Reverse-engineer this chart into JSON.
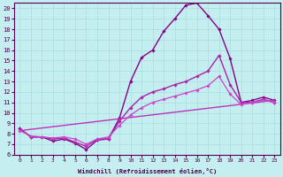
{
  "xlabel": "Windchill (Refroidissement éolien,°C)",
  "xlim": [
    -0.5,
    23.5
  ],
  "ylim": [
    6,
    20.5
  ],
  "xticks": [
    0,
    1,
    2,
    3,
    4,
    5,
    6,
    7,
    8,
    9,
    10,
    11,
    12,
    13,
    14,
    15,
    16,
    17,
    18,
    19,
    20,
    21,
    22,
    23
  ],
  "yticks": [
    6,
    7,
    8,
    9,
    10,
    11,
    12,
    13,
    14,
    15,
    16,
    17,
    18,
    19,
    20
  ],
  "background_color": "#c5eef0",
  "grid_color": "#a8dde0",
  "curves": [
    {
      "x": [
        0,
        1,
        2,
        3,
        4,
        5,
        6,
        7,
        8,
        9,
        10,
        11,
        12,
        13,
        14,
        15,
        16,
        17,
        18,
        19,
        20,
        21,
        22,
        23
      ],
      "y": [
        8.5,
        7.7,
        7.7,
        7.3,
        7.5,
        7.1,
        6.5,
        7.4,
        7.5,
        9.5,
        13.0,
        15.3,
        16.0,
        17.8,
        19.0,
        20.3,
        20.5,
        19.3,
        18.0,
        15.2,
        11.0,
        11.2,
        11.5,
        11.2
      ],
      "color": "#880088",
      "lw": 1.0,
      "marker": "D",
      "ms": 1.8
    },
    {
      "x": [
        0,
        1,
        2,
        3,
        4,
        5,
        6,
        7,
        8,
        9,
        10,
        11,
        12,
        13,
        14,
        15,
        16,
        17,
        18,
        19,
        20,
        21,
        22,
        23
      ],
      "y": [
        8.5,
        7.7,
        7.7,
        7.5,
        7.6,
        7.2,
        6.8,
        7.5,
        7.5,
        9.2,
        10.5,
        11.5,
        12.0,
        12.3,
        12.7,
        13.0,
        13.5,
        14.0,
        15.5,
        12.7,
        11.0,
        11.0,
        11.3,
        11.0
      ],
      "color": "#aa22aa",
      "lw": 1.0,
      "marker": "D",
      "ms": 1.8
    },
    {
      "x": [
        0,
        23
      ],
      "y": [
        8.3,
        11.2
      ],
      "color": "#bb33bb",
      "lw": 1.0,
      "marker": null,
      "ms": 0
    },
    {
      "x": [
        0,
        1,
        2,
        3,
        4,
        5,
        6,
        7,
        8,
        9,
        10,
        11,
        12,
        13,
        14,
        15,
        16,
        17,
        18,
        19,
        20,
        21,
        22,
        23
      ],
      "y": [
        8.3,
        7.8,
        7.7,
        7.6,
        7.7,
        7.5,
        7.0,
        7.5,
        7.7,
        8.8,
        9.8,
        10.5,
        11.0,
        11.3,
        11.6,
        11.9,
        12.2,
        12.6,
        13.5,
        11.8,
        10.8,
        11.0,
        11.2,
        11.0
      ],
      "color": "#cc44cc",
      "lw": 0.9,
      "marker": "D",
      "ms": 1.8
    }
  ]
}
